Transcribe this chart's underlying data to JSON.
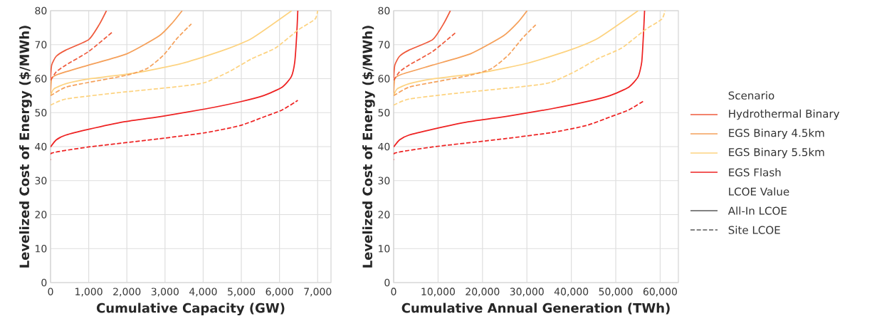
{
  "chart_data": [
    {
      "type": "line",
      "xlabel": "Cumulative Capacity (GW)",
      "ylabel": "Levelized Cost of Energy ($/MWh)",
      "xlim": [
        0,
        7350
      ],
      "ylim": [
        0,
        80
      ],
      "xticks": [
        0,
        {
          "value": 1000,
          "label": "1,000"
        },
        {
          "value": 2000,
          "label": "2,000"
        },
        {
          "value": 3000,
          "label": "3,000"
        },
        {
          "value": 4000,
          "label": "4,000"
        },
        {
          "value": 5000,
          "label": "5,000"
        },
        {
          "value": 6000,
          "label": "6,000"
        },
        {
          "value": 7000,
          "label": "7,000"
        }
      ],
      "yticks": [
        0,
        10,
        20,
        30,
        40,
        50,
        60,
        70,
        80
      ],
      "grid": true,
      "legend": false,
      "series": [
        {
          "color": "#ef5a3c",
          "line_style": "solid",
          "x": [
            0,
            30,
            150,
            400,
            1000,
            1280,
            1465
          ],
          "values": [
            60,
            64,
            66.6,
            68.4,
            71.5,
            76,
            80
          ]
        },
        {
          "color": "#f5a05a",
          "line_style": "solid",
          "x": [
            0,
            30,
            200,
            1000,
            2000,
            2850,
            3200,
            3450
          ],
          "values": [
            55,
            60,
            61.3,
            64,
            67.3,
            72.6,
            76.5,
            80
          ]
        },
        {
          "color": "#fdd380",
          "line_style": "solid",
          "x": [
            0,
            90,
            400,
            1000,
            2230,
            3450,
            4540,
            5280,
            6320
          ],
          "values": [
            55,
            57,
            58.5,
            59.9,
            61.7,
            64.5,
            68.4,
            71.9,
            80
          ]
        },
        {
          "color": "#ee2222",
          "line_style": "solid",
          "x": [
            0,
            150,
            400,
            1000,
            1920,
            2960,
            4060,
            4970,
            5580,
            6070,
            6310,
            6400,
            6450,
            6480
          ],
          "values": [
            39.9,
            42,
            43.4,
            45.1,
            47.3,
            49,
            51.1,
            53.2,
            55,
            57.5,
            60.6,
            64.9,
            72.6,
            80
          ]
        },
        {
          "color": "#ef5a3c",
          "line_style": "dashed",
          "x": [
            0,
            150,
            400,
            1000,
            1620
          ],
          "values": [
            59.5,
            62,
            64,
            68,
            73.7
          ]
        },
        {
          "color": "#f5a05a",
          "line_style": "dashed",
          "x": [
            0,
            400,
            1000,
            1990,
            2530,
            2960,
            3320,
            3690
          ],
          "values": [
            55,
            57.5,
            58.9,
            61,
            63,
            66.9,
            71.9,
            76.1
          ]
        },
        {
          "color": "#fdd380",
          "line_style": "dashed",
          "x": [
            0,
            400,
            1620,
            3450,
            4060,
            4670,
            5280,
            5890,
            6500,
            6930,
            7000
          ],
          "values": [
            52.2,
            54,
            55.7,
            57.8,
            58.9,
            62,
            65.9,
            69,
            74.4,
            77.5,
            80
          ]
        },
        {
          "color": "#ee2222",
          "line_style": "dashed",
          "x": [
            0,
            30,
            1000,
            2840,
            4060,
            4970,
            5580,
            6070,
            6480
          ],
          "values": [
            36,
            38.1,
            39.9,
            42.3,
            44.1,
            46.2,
            48.7,
            50.8,
            53.6
          ]
        }
      ]
    },
    {
      "type": "line",
      "xlabel": "Cumulative Annual Generation (TWh)",
      "ylabel": "Levelized Cost of Energy ($/MWh)",
      "xlim": [
        0,
        64100
      ],
      "ylim": [
        0,
        80
      ],
      "xticks": [
        0,
        {
          "value": 10000,
          "label": "10,000"
        },
        {
          "value": 20000,
          "label": "20,000"
        },
        {
          "value": 30000,
          "label": "30,000"
        },
        {
          "value": 40000,
          "label": "40,000"
        },
        {
          "value": 50000,
          "label": "50,000"
        },
        {
          "value": 60000,
          "label": "60,000"
        }
      ],
      "yticks": [
        0,
        10,
        20,
        30,
        40,
        50,
        60,
        70,
        80
      ],
      "grid": true,
      "legend": "right",
      "legend_title": "Scenario",
      "annotations": [
        "LCOE Value",
        "All-In LCOE",
        "Site LCOE"
      ],
      "series": [
        {
          "name": "Hydrothermal Binary",
          "color": "#ef5a3c",
          "line_style": "solid",
          "x": [
            0,
            270,
            1330,
            3460,
            8780,
            11170,
            12770
          ],
          "values": [
            60,
            64,
            66.6,
            68.4,
            71.5,
            76,
            80
          ]
        },
        {
          "name": "EGS Binary 4.5km",
          "color": "#f5a05a",
          "line_style": "solid",
          "x": [
            0,
            270,
            1860,
            8780,
            17290,
            24730,
            27930,
            30050
          ],
          "values": [
            55,
            60,
            61.3,
            64,
            67.3,
            72.6,
            76.5,
            80
          ]
        },
        {
          "name": "EGS Binary 5.5km",
          "color": "#fdd380",
          "line_style": "solid",
          "x": [
            0,
            800,
            3460,
            8780,
            19410,
            30050,
            39630,
            46010,
            55050
          ],
          "values": [
            55,
            57,
            58.5,
            59.9,
            61.7,
            64.5,
            68.4,
            71.9,
            80
          ]
        },
        {
          "name": "EGS Flash",
          "color": "#ee2222",
          "line_style": "solid",
          "x": [
            0,
            1330,
            3460,
            8780,
            16760,
            25800,
            35370,
            43350,
            48670,
            52930,
            55050,
            55850,
            56220,
            56490
          ],
          "values": [
            39.9,
            42,
            43.4,
            45.1,
            47.3,
            49,
            51.1,
            53.2,
            55,
            57.5,
            60.6,
            64.9,
            72.6,
            80
          ]
        },
        {
          "color": "#ef5a3c",
          "line_style": "dashed",
          "x": [
            0,
            1330,
            3460,
            8780,
            14100
          ],
          "values": [
            59.5,
            62,
            64,
            68,
            73.7
          ]
        },
        {
          "color": "#f5a05a",
          "line_style": "dashed",
          "x": [
            0,
            3460,
            8780,
            17290,
            22070,
            25800,
            28990,
            32180
          ],
          "values": [
            55,
            57.5,
            58.9,
            61,
            63,
            66.9,
            71.9,
            76.1
          ]
        },
        {
          "color": "#fdd380",
          "line_style": "dashed",
          "x": [
            0,
            3460,
            14100,
            30050,
            35370,
            40690,
            46010,
            51330,
            56650,
            60370,
            61060
          ],
          "values": [
            52.2,
            54,
            55.7,
            57.8,
            58.9,
            62,
            65.9,
            69,
            74.4,
            77.5,
            80
          ]
        },
        {
          "color": "#ee2222",
          "line_style": "dashed",
          "x": [
            0,
            270,
            8780,
            24730,
            35370,
            43350,
            48670,
            52930,
            56490
          ],
          "values": [
            36,
            38.1,
            39.9,
            42.3,
            44.1,
            46.2,
            48.7,
            50.8,
            53.6
          ]
        }
      ]
    }
  ]
}
